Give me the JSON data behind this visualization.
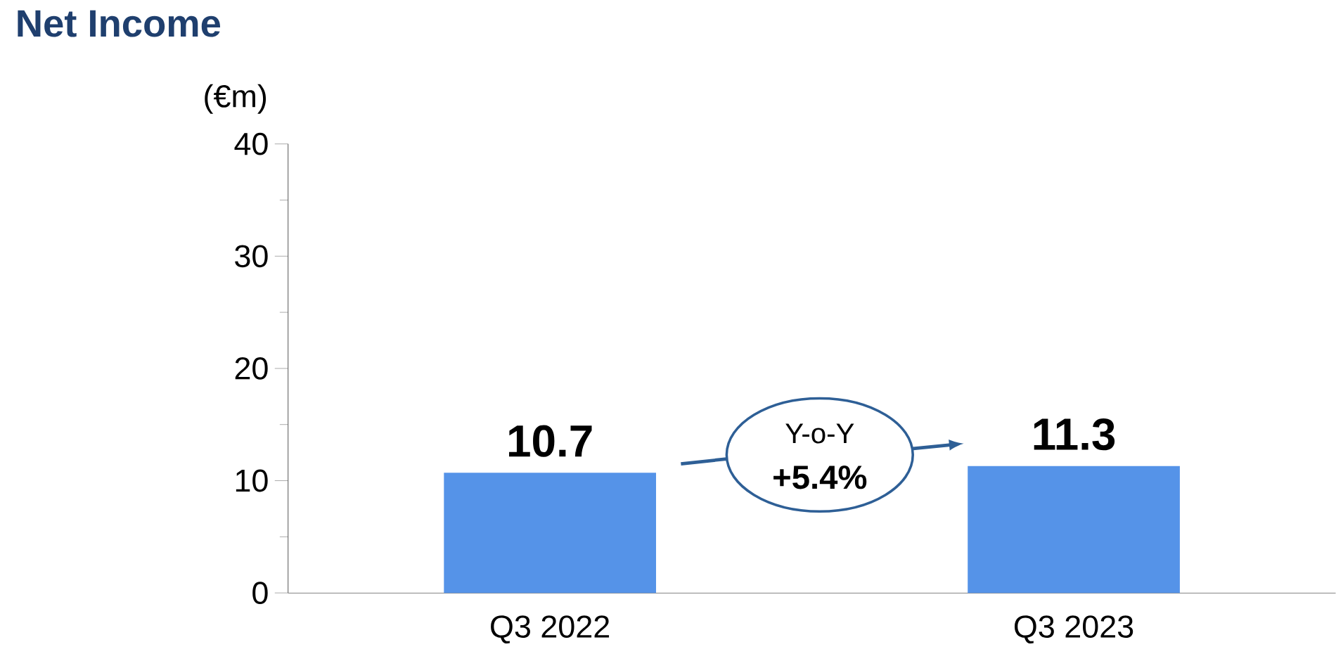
{
  "chart_data": {
    "type": "bar",
    "title": "Net Income",
    "ylabel": "(€m)",
    "categories": [
      "Q3 2022",
      "Q3 2023"
    ],
    "values": [
      10.7,
      11.3
    ],
    "color": "#5593e8",
    "ylim": [
      0,
      40
    ],
    "yticks": [
      0,
      10,
      20,
      30,
      40
    ],
    "grid": false,
    "data_labels": true,
    "annotations": [
      "Y-o-Y",
      "+5.4%"
    ]
  }
}
